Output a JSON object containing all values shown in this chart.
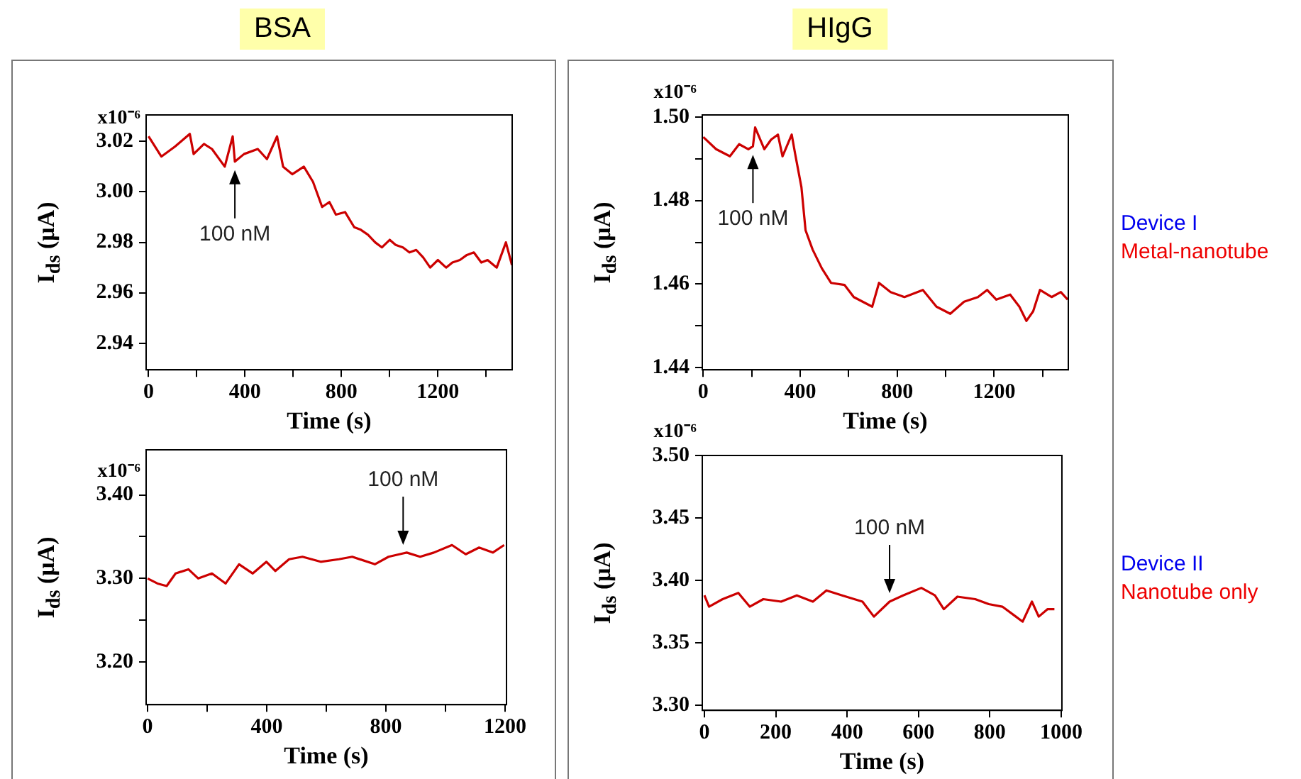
{
  "chart_data": [
    {
      "type": "line",
      "title": "BSA",
      "xlabel": "Time (s)",
      "ylabel": "I$_{ds}$ (μA)",
      "marker": "none",
      "xlim": [
        -10,
        1508
      ],
      "xticks": [
        0,
        {
          "value": 200,
          "label": null
        },
        400,
        {
          "value": 600,
          "label": null
        },
        800,
        {
          "value": 1000,
          "label": null
        },
        1200,
        {
          "value": 1400,
          "label": null
        }
      ],
      "ylim": [
        2.9295,
        3.0305
      ],
      "yticks": [
        2.94,
        2.96,
        2.98,
        {
          "value": 3.0,
          "label": "3.00"
        },
        3.02
      ],
      "annotations": [
        "x10⁻⁶",
        {
          "text": "100 nM",
          "x": 358,
          "y": 3.012
        }
      ],
      "series": [
        {
          "color": "#cc0000",
          "x": [
            0,
            53,
            110,
            171,
            187,
            230,
            263,
            316,
            349,
            358,
            396,
            453,
            491,
            533,
            558,
            596,
            644,
            682,
            720,
            750,
            777,
            815,
            853,
            880,
            910,
            940,
            968,
            1000,
            1025,
            1055,
            1082,
            1110,
            1139,
            1168,
            1200,
            1234,
            1260,
            1291,
            1320,
            1349,
            1380,
            1406,
            1444,
            1482,
            1507
          ],
          "values": [
            3.022,
            3.014,
            3.018,
            3.023,
            3.015,
            3.019,
            3.017,
            3.01,
            3.022,
            3.012,
            3.015,
            3.017,
            3.013,
            3.022,
            3.01,
            3.007,
            3.01,
            3.004,
            2.994,
            2.996,
            2.991,
            2.992,
            2.986,
            2.985,
            2.983,
            2.98,
            2.978,
            2.981,
            2.979,
            2.978,
            2.976,
            2.977,
            2.974,
            2.97,
            2.973,
            2.97,
            2.972,
            2.973,
            2.975,
            2.976,
            2.972,
            2.973,
            2.97,
            2.98,
            2.971
          ]
        }
      ]
    },
    {
      "type": "line",
      "title": "HIgG",
      "xlabel": "Time (s)",
      "ylabel": "I$_{ds}$ (μA)",
      "marker": "none",
      "xlim": [
        -4,
        1506
      ],
      "xticks": [
        0,
        {
          "value": 200,
          "label": null
        },
        400,
        {
          "value": 600,
          "label": null
        },
        800,
        {
          "value": 1000,
          "label": null
        },
        1200,
        {
          "value": 1400,
          "label": null
        }
      ],
      "ylim": [
        1.4395,
        1.5005
      ],
      "yticks": [
        1.44,
        {
          "value": 1.45,
          "label": null
        },
        1.46,
        {
          "value": 1.47,
          "label": null
        },
        1.48,
        {
          "value": 1.49,
          "label": null
        },
        {
          "value": 1.5,
          "label": "1.50"
        }
      ],
      "annotations": [
        "x10⁻⁶",
        "Device I",
        "Metal-nanotube",
        {
          "text": "100 nM",
          "x": 205,
          "y": 1.493
        }
      ],
      "series": [
        {
          "color": "#cc0000",
          "x": [
            0,
            53,
            110,
            148,
            186,
            205,
            214,
            252,
            280,
            308,
            327,
            365,
            379,
            394,
            405,
            422,
            451,
            489,
            527,
            583,
            621,
            697,
            725,
            773,
            830,
            906,
            962,
            1019,
            1076,
            1133,
            1171,
            1209,
            1266,
            1304,
            1333,
            1361,
            1389,
            1437,
            1475,
            1503
          ],
          "values": [
            1.4952,
            1.4923,
            1.4906,
            1.4935,
            1.4923,
            1.493,
            1.4975,
            1.4923,
            1.4946,
            1.4958,
            1.4906,
            1.4958,
            1.4912,
            1.4866,
            1.4832,
            1.4729,
            1.4683,
            1.4638,
            1.4603,
            1.4598,
            1.4569,
            1.4546,
            1.4603,
            1.4581,
            1.4569,
            1.4586,
            1.4546,
            1.4529,
            1.4558,
            1.4569,
            1.4586,
            1.4563,
            1.4575,
            1.4546,
            1.4512,
            1.4535,
            1.4586,
            1.4569,
            1.4581,
            1.4563
          ]
        }
      ]
    },
    {
      "type": "line",
      "xlabel": "Time (s)",
      "ylabel": "I$_{ds}$ (μA)",
      "marker": "none",
      "xlim": [
        -5,
        1205
      ],
      "xticks": [
        0,
        {
          "value": 200,
          "label": null
        },
        400,
        {
          "value": 600,
          "label": null
        },
        800,
        {
          "value": 1000,
          "label": null
        },
        1200
      ],
      "ylim": [
        3.149,
        3.454
      ],
      "yticks": [
        {
          "value": 3.2,
          "label": "3.20"
        },
        {
          "value": 3.25,
          "label": null
        },
        {
          "value": 3.3,
          "label": "3.30"
        },
        {
          "value": 3.35,
          "label": null
        },
        {
          "value": 3.4,
          "label": "3.40"
        }
      ],
      "annotations": [
        "x10⁻⁶",
        {
          "text": "100 nM",
          "x": 858,
          "y": 3.33
        }
      ],
      "series": [
        {
          "color": "#cc0000",
          "x": [
            0,
            33,
            64,
            94,
            137,
            170,
            216,
            262,
            307,
            353,
            399,
            429,
            475,
            520,
            581,
            642,
            687,
            763,
            809,
            858,
            870,
            915,
            961,
            1022,
            1068,
            1113,
            1159,
            1197
          ],
          "values": [
            3.3,
            3.294,
            3.291,
            3.306,
            3.311,
            3.3,
            3.306,
            3.294,
            3.317,
            3.306,
            3.32,
            3.309,
            3.323,
            3.326,
            3.32,
            3.323,
            3.326,
            3.317,
            3.326,
            3.33,
            3.331,
            3.326,
            3.331,
            3.34,
            3.329,
            3.337,
            3.331,
            3.34
          ]
        }
      ]
    },
    {
      "type": "line",
      "xlabel": "Time (s)",
      "ylabel": "I$_{ds}$ (μA)",
      "marker": "none",
      "xlim": [
        -6,
        1002
      ],
      "xticks": [
        0,
        200,
        400,
        600,
        800,
        1000
      ],
      "ylim": [
        3.296,
        3.5
      ],
      "yticks": [
        {
          "value": 3.3,
          "label": "3.30"
        },
        3.35,
        {
          "value": 3.4,
          "label": "3.40"
        },
        3.45,
        {
          "value": 3.5,
          "label": "3.50"
        }
      ],
      "annotations": [
        "x10⁻⁶",
        "Device II",
        "Nanotube only",
        {
          "text": "100 nM",
          "x": 519,
          "y": 3.383
        }
      ],
      "series": [
        {
          "color": "#cc0000",
          "x": [
            0,
            13,
            51,
            95,
            127,
            165,
            215,
            259,
            304,
            342,
            386,
            443,
            475,
            519,
            557,
            608,
            646,
            671,
            709,
            759,
            797,
            835,
            873,
            892,
            918,
            937,
            962,
            981
          ],
          "values": [
            3.388,
            3.379,
            3.385,
            3.39,
            3.379,
            3.385,
            3.383,
            3.388,
            3.383,
            3.392,
            3.388,
            3.383,
            3.371,
            3.383,
            3.388,
            3.394,
            3.388,
            3.377,
            3.387,
            3.385,
            3.381,
            3.379,
            3.371,
            3.367,
            3.383,
            3.371,
            3.377,
            3.377
          ]
        }
      ]
    }
  ]
}
